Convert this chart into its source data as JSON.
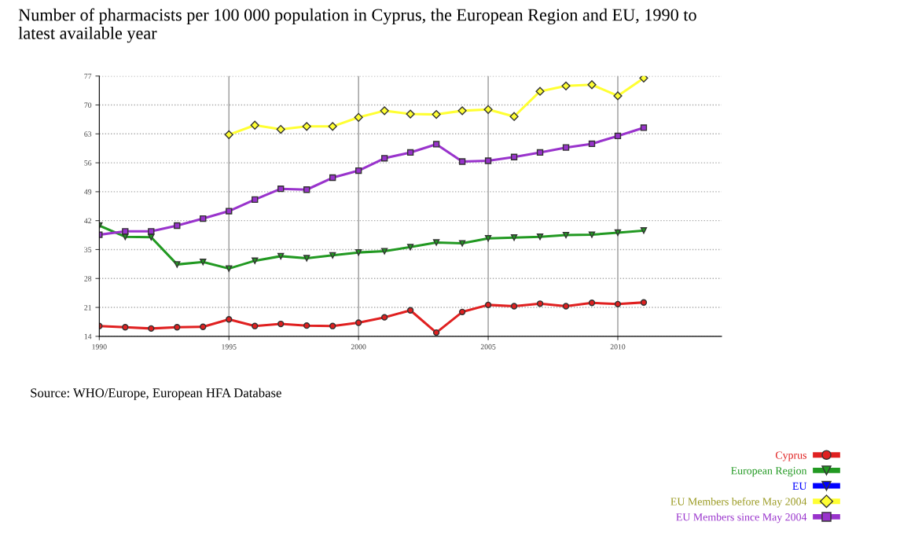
{
  "chart_data": {
    "type": "line",
    "title": "Number of pharmacists per 100 000 population in Cyprus, the European Region and EU, 1990 to\nlatest available year",
    "x": [
      1990,
      1991,
      1992,
      1993,
      1994,
      1995,
      1996,
      1997,
      1998,
      1999,
      2000,
      2001,
      2002,
      2003,
      2004,
      2005,
      2006,
      2007,
      2008,
      2009,
      2010,
      2011
    ],
    "series": [
      {
        "name": "Cyprus",
        "color": "#e02020",
        "marker": "circle",
        "values": [
          16.5,
          16.2,
          15.9,
          16.2,
          16.3,
          18.1,
          16.5,
          17.0,
          16.6,
          16.5,
          17.3,
          18.6,
          20.3,
          14.9,
          19.9,
          21.6,
          21.3,
          21.9,
          21.3,
          22.1,
          21.8,
          22.2
        ]
      },
      {
        "name": "European Region",
        "color": "#229922",
        "marker": "triangle",
        "values": [
          40.8,
          38.1,
          38.0,
          31.4,
          32.0,
          30.4,
          32.3,
          33.4,
          32.9,
          33.6,
          34.3,
          34.6,
          35.6,
          36.7,
          36.5,
          37.7,
          37.9,
          38.1,
          38.5,
          38.6,
          39.1,
          39.6
        ]
      },
      {
        "name": "EU",
        "color": "#0000ff",
        "marker": "triangle",
        "values": [
          null,
          null,
          null,
          null,
          null,
          null,
          null,
          null,
          null,
          null,
          null,
          null,
          null,
          null,
          null,
          null,
          null,
          null,
          null,
          null,
          null,
          null
        ]
      },
      {
        "name": "EU Members before May 2004",
        "color": "#ffff33",
        "marker": "diamond",
        "values": [
          null,
          null,
          null,
          null,
          null,
          62.8,
          65.1,
          64.1,
          64.8,
          64.8,
          67.0,
          68.6,
          67.8,
          67.7,
          68.6,
          68.9,
          67.2,
          73.3,
          74.6,
          74.9,
          72.2,
          76.5
        ]
      },
      {
        "name": "EU Members since May 2004",
        "color": "#9933cc",
        "marker": "square",
        "values": [
          38.6,
          39.4,
          39.4,
          40.8,
          42.5,
          44.3,
          47.1,
          49.7,
          49.5,
          52.4,
          54.1,
          57.1,
          58.5,
          60.5,
          56.3,
          56.5,
          57.4,
          58.5,
          59.7,
          60.6,
          62.5,
          64.5
        ]
      }
    ],
    "xlim": [
      1990,
      2014
    ],
    "xticks": [
      1990,
      1995,
      2000,
      2005,
      2010
    ],
    "ylim": [
      14,
      77
    ],
    "yticks": [
      14,
      21,
      28,
      35,
      42,
      49,
      56,
      63,
      70,
      77
    ],
    "grid": true,
    "legend": "bottom right",
    "line_style": "solid",
    "annotations": [
      "Source: WHO/Europe, European HFA Database"
    ]
  }
}
